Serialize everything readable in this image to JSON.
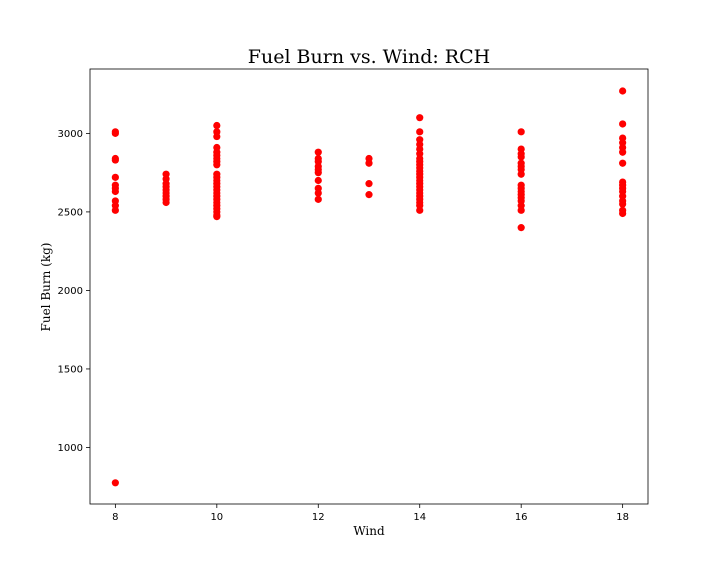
{
  "chart_data": {
    "type": "scatter",
    "title": "Fuel Burn vs. Wind: RCH",
    "xlabel": "Wind",
    "ylabel": "Fuel Burn (kg)",
    "xlim": [
      7.5,
      18.5
    ],
    "ylim": [
      640,
      3410
    ],
    "xticks": [
      8,
      10,
      12,
      14,
      16,
      18
    ],
    "yticks": [
      1000,
      1500,
      2000,
      2500,
      3000
    ],
    "grid": false,
    "marker_color": "#ff0000",
    "points": [
      {
        "x": 8,
        "y": 3010
      },
      {
        "x": 8,
        "y": 3000
      },
      {
        "x": 8,
        "y": 2840
      },
      {
        "x": 8,
        "y": 2830
      },
      {
        "x": 8,
        "y": 2720
      },
      {
        "x": 8,
        "y": 2670
      },
      {
        "x": 8,
        "y": 2650
      },
      {
        "x": 8,
        "y": 2630
      },
      {
        "x": 8,
        "y": 2570
      },
      {
        "x": 8,
        "y": 2540
      },
      {
        "x": 8,
        "y": 2510
      },
      {
        "x": 8,
        "y": 775
      },
      {
        "x": 9,
        "y": 2740
      },
      {
        "x": 9,
        "y": 2710
      },
      {
        "x": 9,
        "y": 2680
      },
      {
        "x": 9,
        "y": 2660
      },
      {
        "x": 9,
        "y": 2640
      },
      {
        "x": 9,
        "y": 2620
      },
      {
        "x": 9,
        "y": 2600
      },
      {
        "x": 9,
        "y": 2580
      },
      {
        "x": 9,
        "y": 2560
      },
      {
        "x": 10,
        "y": 3050
      },
      {
        "x": 10,
        "y": 3010
      },
      {
        "x": 10,
        "y": 2980
      },
      {
        "x": 10,
        "y": 2910
      },
      {
        "x": 10,
        "y": 2880
      },
      {
        "x": 10,
        "y": 2860
      },
      {
        "x": 10,
        "y": 2840
      },
      {
        "x": 10,
        "y": 2820
      },
      {
        "x": 10,
        "y": 2800
      },
      {
        "x": 10,
        "y": 2740
      },
      {
        "x": 10,
        "y": 2720
      },
      {
        "x": 10,
        "y": 2700
      },
      {
        "x": 10,
        "y": 2680
      },
      {
        "x": 10,
        "y": 2660
      },
      {
        "x": 10,
        "y": 2640
      },
      {
        "x": 10,
        "y": 2620
      },
      {
        "x": 10,
        "y": 2600
      },
      {
        "x": 10,
        "y": 2580
      },
      {
        "x": 10,
        "y": 2560
      },
      {
        "x": 10,
        "y": 2540
      },
      {
        "x": 10,
        "y": 2520
      },
      {
        "x": 10,
        "y": 2500
      },
      {
        "x": 10,
        "y": 2480
      },
      {
        "x": 10,
        "y": 2470
      },
      {
        "x": 12,
        "y": 2880
      },
      {
        "x": 12,
        "y": 2840
      },
      {
        "x": 12,
        "y": 2820
      },
      {
        "x": 12,
        "y": 2790
      },
      {
        "x": 12,
        "y": 2770
      },
      {
        "x": 12,
        "y": 2750
      },
      {
        "x": 12,
        "y": 2700
      },
      {
        "x": 12,
        "y": 2650
      },
      {
        "x": 12,
        "y": 2620
      },
      {
        "x": 12,
        "y": 2580
      },
      {
        "x": 13,
        "y": 2840
      },
      {
        "x": 13,
        "y": 2810
      },
      {
        "x": 13,
        "y": 2680
      },
      {
        "x": 13,
        "y": 2610
      },
      {
        "x": 14,
        "y": 3100
      },
      {
        "x": 14,
        "y": 3010
      },
      {
        "x": 14,
        "y": 2960
      },
      {
        "x": 14,
        "y": 2930
      },
      {
        "x": 14,
        "y": 2900
      },
      {
        "x": 14,
        "y": 2870
      },
      {
        "x": 14,
        "y": 2840
      },
      {
        "x": 14,
        "y": 2820
      },
      {
        "x": 14,
        "y": 2800
      },
      {
        "x": 14,
        "y": 2780
      },
      {
        "x": 14,
        "y": 2760
      },
      {
        "x": 14,
        "y": 2740
      },
      {
        "x": 14,
        "y": 2720
      },
      {
        "x": 14,
        "y": 2700
      },
      {
        "x": 14,
        "y": 2680
      },
      {
        "x": 14,
        "y": 2660
      },
      {
        "x": 14,
        "y": 2640
      },
      {
        "x": 14,
        "y": 2620
      },
      {
        "x": 14,
        "y": 2600
      },
      {
        "x": 14,
        "y": 2580
      },
      {
        "x": 14,
        "y": 2560
      },
      {
        "x": 14,
        "y": 2540
      },
      {
        "x": 14,
        "y": 2510
      },
      {
        "x": 16,
        "y": 3010
      },
      {
        "x": 16,
        "y": 2900
      },
      {
        "x": 16,
        "y": 2870
      },
      {
        "x": 16,
        "y": 2850
      },
      {
        "x": 16,
        "y": 2810
      },
      {
        "x": 16,
        "y": 2790
      },
      {
        "x": 16,
        "y": 2770
      },
      {
        "x": 16,
        "y": 2740
      },
      {
        "x": 16,
        "y": 2670
      },
      {
        "x": 16,
        "y": 2650
      },
      {
        "x": 16,
        "y": 2630
      },
      {
        "x": 16,
        "y": 2610
      },
      {
        "x": 16,
        "y": 2590
      },
      {
        "x": 16,
        "y": 2570
      },
      {
        "x": 16,
        "y": 2540
      },
      {
        "x": 16,
        "y": 2510
      },
      {
        "x": 16,
        "y": 2400
      },
      {
        "x": 18,
        "y": 3270
      },
      {
        "x": 18,
        "y": 3060
      },
      {
        "x": 18,
        "y": 2970
      },
      {
        "x": 18,
        "y": 2940
      },
      {
        "x": 18,
        "y": 2910
      },
      {
        "x": 18,
        "y": 2880
      },
      {
        "x": 18,
        "y": 2810
      },
      {
        "x": 18,
        "y": 2690
      },
      {
        "x": 18,
        "y": 2670
      },
      {
        "x": 18,
        "y": 2650
      },
      {
        "x": 18,
        "y": 2630
      },
      {
        "x": 18,
        "y": 2600
      },
      {
        "x": 18,
        "y": 2570
      },
      {
        "x": 18,
        "y": 2550
      },
      {
        "x": 18,
        "y": 2510
      },
      {
        "x": 18,
        "y": 2490
      }
    ]
  }
}
